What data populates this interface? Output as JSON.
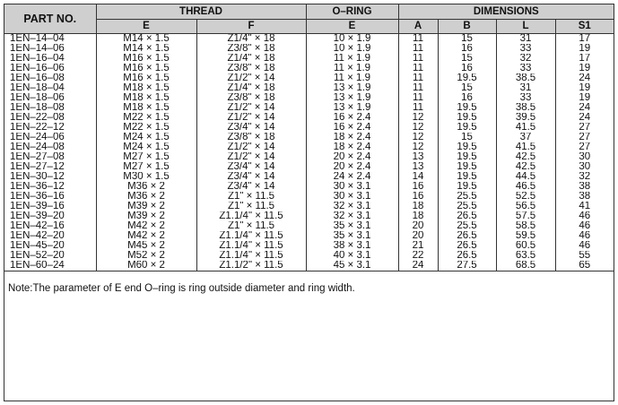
{
  "headers": {
    "part_no": "PART NO.",
    "thread": "THREAD",
    "oring": "O–RING",
    "dimensions": "DIMENSIONS",
    "sub": [
      "E",
      "F",
      "E",
      "A",
      "B",
      "L",
      "S1"
    ]
  },
  "rows": [
    [
      "1EN–14–04",
      "M14 × 1.5",
      "Z1/4\" × 18",
      "10 × 1.9",
      "11",
      "15",
      "31",
      "17"
    ],
    [
      "1EN–14–06",
      "M14 × 1.5",
      "Z3/8\" × 18",
      "10 × 1.9",
      "11",
      "16",
      "33",
      "19"
    ],
    [
      "1EN–16–04",
      "M16 × 1.5",
      "Z1/4\" × 18",
      "11 × 1.9",
      "11",
      "15",
      "32",
      "17"
    ],
    [
      "1EN–16–06",
      "M16 × 1.5",
      "Z3/8\" × 18",
      "11 × 1.9",
      "11",
      "16",
      "33",
      "19"
    ],
    [
      "1EN–16–08",
      "M16 × 1.5",
      "Z1/2\" × 14",
      "11 × 1.9",
      "11",
      "19.5",
      "38.5",
      "24"
    ],
    [
      "1EN–18–04",
      "M18 × 1.5",
      "Z1/4\" × 18",
      "13 × 1.9",
      "11",
      "15",
      "31",
      "19"
    ],
    [
      "1EN–18–06",
      "M18 × 1.5",
      "Z3/8\" × 18",
      "13 × 1.9",
      "11",
      "16",
      "33",
      "19"
    ],
    [
      "1EN–18–08",
      "M18 × 1.5",
      "Z1/2\" × 14",
      "13 × 1.9",
      "11",
      "19.5",
      "38.5",
      "24"
    ],
    [
      "1EN–22–08",
      "M22 × 1.5",
      "Z1/2\" × 14",
      "16 × 2.4",
      "12",
      "19.5",
      "39.5",
      "24"
    ],
    [
      "1EN–22–12",
      "M22 × 1.5",
      "Z3/4\" × 14",
      "16 × 2.4",
      "12",
      "19.5",
      "41.5",
      "27"
    ],
    [
      "1EN–24–06",
      "M24 × 1.5",
      "Z3/8\" × 18",
      "18 × 2.4",
      "12",
      "15",
      "37",
      "27"
    ],
    [
      "1EN–24–08",
      "M24 × 1.5",
      "Z1/2\" × 14",
      "18 × 2.4",
      "12",
      "19.5",
      "41.5",
      "27"
    ],
    [
      "1EN–27–08",
      "M27 × 1.5",
      "Z1/2\" × 14",
      "20 × 2.4",
      "13",
      "19.5",
      "42.5",
      "30"
    ],
    [
      "1EN–27–12",
      "M27 × 1.5",
      "Z3/4\" × 14",
      "20 × 2.4",
      "13",
      "19.5",
      "42.5",
      "30"
    ],
    [
      "1EN–30–12",
      "M30 × 1.5",
      "Z3/4\" × 14",
      "24 × 2.4",
      "14",
      "19.5",
      "44.5",
      "32"
    ],
    [
      "1EN–36–12",
      "M36 × 2",
      "Z3/4\" × 14",
      "30 × 3.1",
      "16",
      "19.5",
      "46.5",
      "38"
    ],
    [
      "1EN–36–16",
      "M36 × 2",
      "Z1\" × 11.5",
      "30 × 3.1",
      "16",
      "25.5",
      "52.5",
      "38"
    ],
    [
      "1EN–39–16",
      "M39 × 2",
      "Z1\" × 11.5",
      "32 × 3.1",
      "18",
      "25.5",
      "56.5",
      "41"
    ],
    [
      "1EN–39–20",
      "M39 × 2",
      "Z1.1/4\" × 11.5",
      "32 × 3.1",
      "18",
      "26.5",
      "57.5",
      "46"
    ],
    [
      "1EN–42–16",
      "M42 × 2",
      "Z1\" × 11.5",
      "35 × 3.1",
      "20",
      "25.5",
      "58.5",
      "46"
    ],
    [
      "1EN–42–20",
      "M42 × 2",
      "Z1.1/4\" × 11.5",
      "35 × 3.1",
      "20",
      "26.5",
      "59.5",
      "46"
    ],
    [
      "1EN–45–20",
      "M45 × 2",
      "Z1.1/4\" × 11.5",
      "38 × 3.1",
      "21",
      "26.5",
      "60.5",
      "46"
    ],
    [
      "1EN–52–20",
      "M52 × 2",
      "Z1.1/4\" × 11.5",
      "40 × 3.1",
      "22",
      "26.5",
      "63.5",
      "55"
    ],
    [
      "1EN–60–24",
      "M60 × 2",
      "Z1.1/2\" × 11.5",
      "45 × 3.1",
      "24",
      "27.5",
      "68.5",
      "65"
    ]
  ],
  "note": "Note:The parameter of E end O–ring is ring outside diameter and ring width."
}
